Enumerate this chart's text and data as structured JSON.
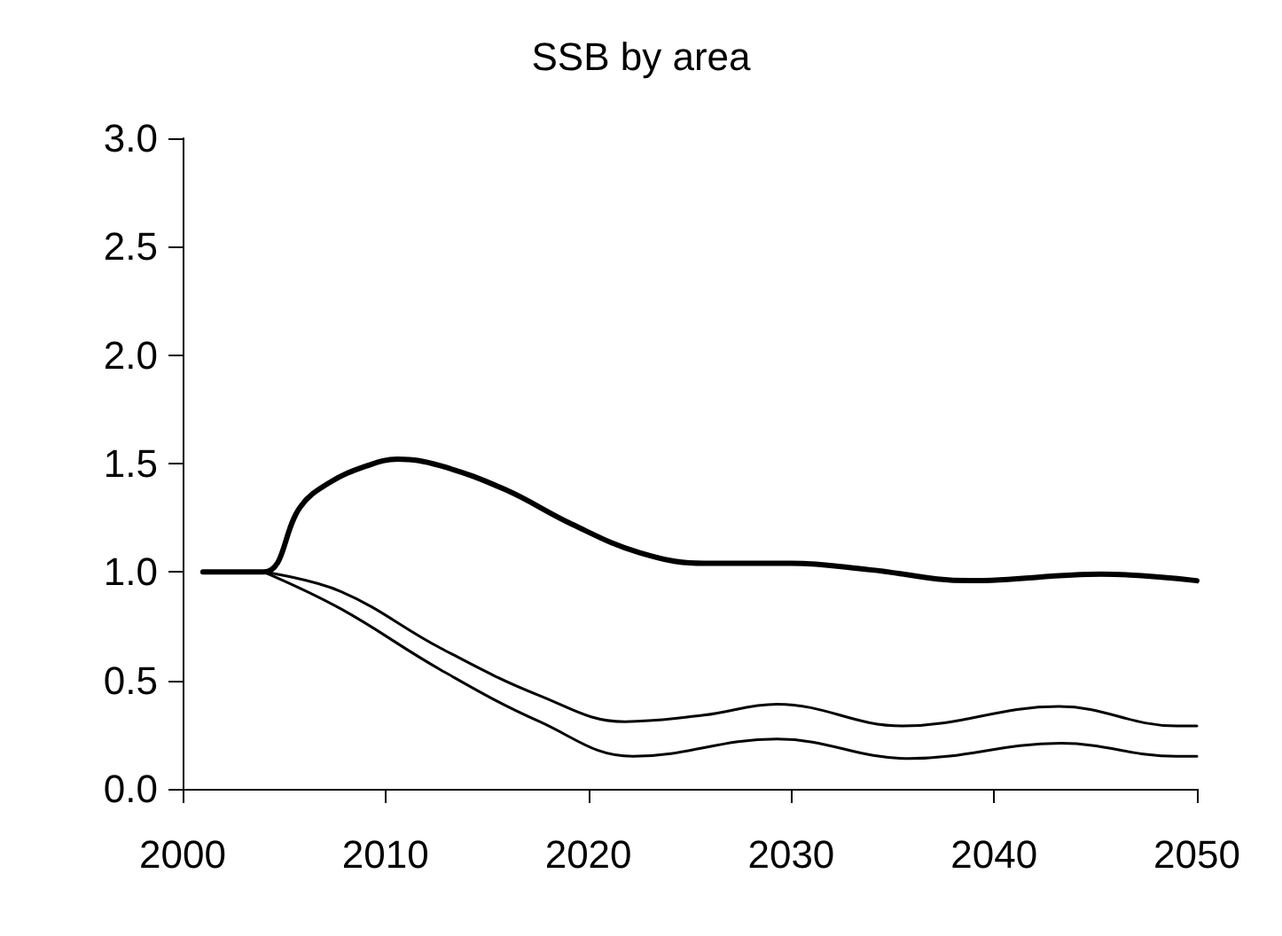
{
  "chart_data": {
    "type": "line",
    "title": "SSB by area",
    "xlim": [
      2000,
      2050
    ],
    "xticks": [
      2000,
      2010,
      2020,
      2030,
      2040,
      2050
    ],
    "ylim": [
      0,
      3
    ],
    "yticks": [
      {
        "value": 0,
        "label": "0.0"
      },
      0.5,
      {
        "value": 1,
        "label": "1.0"
      },
      1.5,
      {
        "value": 2,
        "label": "2.0"
      },
      2.5,
      {
        "value": 3,
        "label": "3.0"
      }
    ],
    "grid": false,
    "marker": "none",
    "line_style": "solid",
    "series": [
      {
        "color": "#000000",
        "x": [
          2001,
          2004,
          2005.8,
          2007.2,
          2009.1,
          2010.6,
          2012.7,
          2015.9,
          2019.2,
          2022.5,
          2025.7,
          2030,
          2033.9,
          2038.8,
          2045.3,
          2050
        ],
        "values": [
          1,
          1,
          1.3,
          1.41,
          1.49,
          1.52,
          1.49,
          1.38,
          1.22,
          1.09,
          1.04,
          1.04,
          1.01,
          0.96,
          0.99,
          0.96
        ]
      },
      {
        "color": "#000000",
        "x": [
          2004,
          2007.8,
          2012.7,
          2017.6,
          2021.8,
          2025.7,
          2029.3,
          2035.5,
          2043.2,
          2049,
          2050
        ],
        "values": [
          1,
          0.91,
          0.65,
          0.43,
          0.31,
          0.34,
          0.39,
          0.29,
          0.38,
          0.29,
          0.29
        ]
      },
      {
        "color": "#000000",
        "x": [
          2004,
          2007.8,
          2012.7,
          2017.6,
          2022.2,
          2029.3,
          2035.8,
          2043.3,
          2049,
          2050
        ],
        "values": [
          1,
          0.83,
          0.55,
          0.31,
          0.15,
          0.23,
          0.14,
          0.21,
          0.15,
          0.15
        ]
      }
    ]
  }
}
